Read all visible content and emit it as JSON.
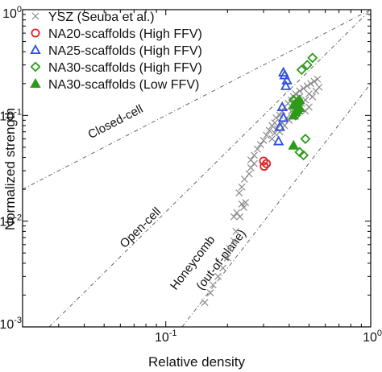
{
  "chart_data": {
    "type": "scatter",
    "title": "",
    "xlabel": "Relative density",
    "ylabel": "Normalized strength",
    "xscale": "log",
    "yscale": "log",
    "xlim": [
      0.02,
      1
    ],
    "ylim": [
      0.001,
      1
    ],
    "x_ticks": [
      {
        "base": "10",
        "exp": "-1",
        "value": 0.1
      },
      {
        "base": "10",
        "exp": "0",
        "value": 1
      }
    ],
    "y_ticks": [
      {
        "base": "10",
        "exp": "-3",
        "value": 0.001
      },
      {
        "base": "10",
        "exp": "-2",
        "value": 0.01
      },
      {
        "base": "10",
        "exp": "-1",
        "value": 0.1
      },
      {
        "base": "10",
        "exp": "0",
        "value": 1
      }
    ],
    "grid": false,
    "legend_position": "top-left",
    "reference_lines": [
      {
        "label": "Closed-cell",
        "x": [
          0.02,
          1
        ],
        "y": [
          0.02,
          1
        ],
        "label_at": {
          "x": 0.043,
          "y": 0.06
        }
      },
      {
        "label": "Open-cell",
        "x": [
          0.027,
          1
        ],
        "y": [
          0.001,
          1
        ],
        "label_at": {
          "x": 0.063,
          "y": 0.0055
        }
      },
      {
        "label": "Honeycomb",
        "x": [
          0.12,
          1
        ],
        "y": [
          0.001,
          0.2
        ],
        "label_at": {
          "x": 0.112,
          "y": 0.0022
        }
      },
      {
        "label": "(out-of-plane)",
        "x": [],
        "y": [],
        "label_at": {
          "x": 0.15,
          "y": 0.0022
        }
      }
    ],
    "series": [
      {
        "name": "YSZ (Seuba et al.)",
        "marker": "x",
        "color": "#8c8c8c",
        "points": [
          [
            0.155,
            0.0017
          ],
          [
            0.165,
            0.0021
          ],
          [
            0.17,
            0.0025
          ],
          [
            0.18,
            0.003
          ],
          [
            0.19,
            0.0036
          ],
          [
            0.2,
            0.0045
          ],
          [
            0.205,
            0.0055
          ],
          [
            0.215,
            0.0065
          ],
          [
            0.22,
            0.008
          ],
          [
            0.215,
            0.011
          ],
          [
            0.222,
            0.012
          ],
          [
            0.235,
            0.0145
          ],
          [
            0.245,
            0.015
          ],
          [
            0.24,
            0.0135
          ],
          [
            0.23,
            0.011
          ],
          [
            0.228,
            0.0185
          ],
          [
            0.235,
            0.021
          ],
          [
            0.242,
            0.025
          ],
          [
            0.255,
            0.028
          ],
          [
            0.26,
            0.032
          ],
          [
            0.27,
            0.035
          ],
          [
            0.26,
            0.038
          ],
          [
            0.27,
            0.042
          ],
          [
            0.28,
            0.048
          ],
          [
            0.29,
            0.053
          ],
          [
            0.3,
            0.058
          ],
          [
            0.31,
            0.065
          ],
          [
            0.32,
            0.072
          ],
          [
            0.33,
            0.08
          ],
          [
            0.34,
            0.085
          ],
          [
            0.345,
            0.095
          ],
          [
            0.36,
            0.1
          ],
          [
            0.37,
            0.11
          ],
          [
            0.38,
            0.12
          ],
          [
            0.395,
            0.13
          ],
          [
            0.41,
            0.14
          ],
          [
            0.42,
            0.15
          ],
          [
            0.43,
            0.16
          ],
          [
            0.45,
            0.17
          ],
          [
            0.47,
            0.18
          ],
          [
            0.49,
            0.19
          ],
          [
            0.51,
            0.2
          ],
          [
            0.53,
            0.21
          ],
          [
            0.55,
            0.22
          ],
          [
            0.52,
            0.15
          ],
          [
            0.5,
            0.12
          ],
          [
            0.48,
            0.11
          ],
          [
            0.46,
            0.13
          ],
          [
            0.44,
            0.12
          ],
          [
            0.42,
            0.1
          ],
          [
            0.4,
            0.09
          ],
          [
            0.38,
            0.08
          ],
          [
            0.36,
            0.07
          ],
          [
            0.35,
            0.075
          ],
          [
            0.33,
            0.06
          ],
          [
            0.54,
            0.17
          ],
          [
            0.56,
            0.185
          ],
          [
            0.5,
            0.16
          ],
          [
            0.48,
            0.14
          ],
          [
            0.45,
            0.15
          ],
          [
            0.43,
            0.13
          ],
          [
            0.41,
            0.11
          ],
          [
            0.39,
            0.095
          ],
          [
            0.37,
            0.085
          ],
          [
            0.34,
            0.068
          ]
        ]
      },
      {
        "name": "NA20-scaffolds (High FFV)",
        "marker": "circle",
        "color": "#e02020",
        "points": [
          [
            0.3,
            0.037
          ],
          [
            0.302,
            0.033
          ],
          [
            0.31,
            0.035
          ]
        ]
      },
      {
        "name": "NA25-scaffolds (High FFV)",
        "marker": "triangle-up",
        "color": "#2f4fe0",
        "points": [
          [
            0.375,
            0.255
          ],
          [
            0.38,
            0.24
          ],
          [
            0.39,
            0.215
          ],
          [
            0.385,
            0.19
          ],
          [
            0.37,
            0.12
          ],
          [
            0.375,
            0.095
          ],
          [
            0.36,
            0.078
          ],
          [
            0.355,
            0.057
          ]
        ]
      },
      {
        "name": "NA30-scaffolds (High FFV)",
        "marker": "diamond",
        "color": "#2e9a1a",
        "points": [
          [
            0.52,
            0.35
          ],
          [
            0.49,
            0.3
          ],
          [
            0.46,
            0.27
          ],
          [
            0.48,
            0.06
          ],
          [
            0.45,
            0.045
          ],
          [
            0.47,
            0.042
          ],
          [
            0.42,
            0.14
          ],
          [
            0.44,
            0.12
          ],
          [
            0.43,
            0.1
          ]
        ]
      },
      {
        "name": "NA30-scaffolds (Low FFV)",
        "marker": "triangle-up-filled",
        "color": "#2e9a1a",
        "points": [
          [
            0.42,
            0.052
          ],
          [
            0.42,
            0.1
          ],
          [
            0.43,
            0.108
          ],
          [
            0.44,
            0.112
          ],
          [
            0.45,
            0.118
          ],
          [
            0.42,
            0.125
          ],
          [
            0.43,
            0.13
          ],
          [
            0.44,
            0.135
          ],
          [
            0.45,
            0.14
          ]
        ]
      }
    ]
  }
}
